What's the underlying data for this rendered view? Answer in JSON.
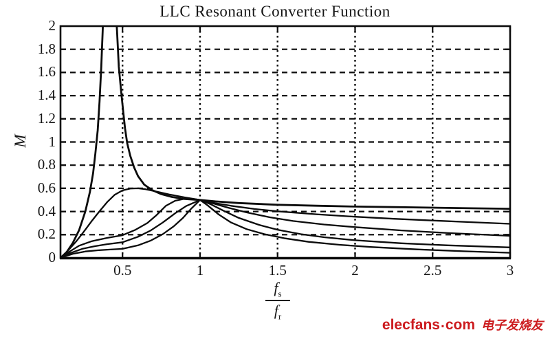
{
  "chart_data": {
    "type": "line",
    "title": "LLC Resonant Converter Function",
    "ylabel": "M",
    "xlabel": {
      "numerator": "f",
      "numerator_sub": "s",
      "denominator": "f",
      "denominator_sub": "r",
      "display": "fs/fr"
    },
    "xlim": [
      0.1,
      3
    ],
    "ylim": [
      0,
      2
    ],
    "xticks": {
      "values": [
        0.5,
        1,
        1.5,
        2,
        2.5,
        3
      ],
      "labels": [
        "0.5",
        "1",
        "1.5",
        "2",
        "2.5",
        "3"
      ]
    },
    "yticks": {
      "values": [
        0,
        0.2,
        0.4,
        0.6,
        0.8,
        1,
        1.2,
        1.4,
        1.6,
        1.8,
        2
      ],
      "labels": [
        "0",
        "0.2",
        "0.4",
        "0.6",
        "0.8",
        "1",
        "1.2",
        "1.4",
        "1.6",
        "1.8",
        "2"
      ]
    },
    "grid": {
      "horizontal_style": "dashed",
      "vertical_style": "dotted",
      "horizontal_values": [
        0.2,
        0.4,
        0.6,
        0.8,
        1,
        1.2,
        1.4,
        1.6,
        1.8
      ],
      "vertical_values": [
        0.5,
        1,
        1.5,
        2,
        2.5
      ]
    },
    "line_color": "#0b0b0b",
    "legend": "none",
    "series": [
      {
        "name": "gain-curve-resonant-peak-offscale",
        "points": [
          [
            0.1,
            0
          ],
          [
            0.14,
            0.05
          ],
          [
            0.18,
            0.13
          ],
          [
            0.22,
            0.24
          ],
          [
            0.26,
            0.4
          ],
          [
            0.29,
            0.57
          ],
          [
            0.31,
            0.73
          ],
          [
            0.325,
            0.9
          ],
          [
            0.34,
            1.1
          ],
          [
            0.352,
            1.35
          ],
          [
            0.363,
            1.65
          ],
          [
            0.372,
            1.95
          ],
          [
            0.38,
            2.25
          ],
          [
            0.4,
            2.6
          ],
          [
            0.43,
            2.6
          ],
          [
            0.452,
            2.25
          ],
          [
            0.465,
            1.95
          ],
          [
            0.476,
            1.65
          ],
          [
            0.49,
            1.45
          ],
          [
            0.503,
            1.28
          ],
          [
            0.516,
            1.12
          ],
          [
            0.53,
            0.99
          ],
          [
            0.55,
            0.88
          ],
          [
            0.575,
            0.78
          ],
          [
            0.6,
            0.705
          ],
          [
            0.64,
            0.632
          ],
          [
            0.69,
            0.585
          ],
          [
            0.75,
            0.55
          ],
          [
            0.82,
            0.525
          ],
          [
            0.9,
            0.508
          ],
          [
            1.0,
            0.5
          ],
          [
            1.1,
            0.487
          ],
          [
            1.25,
            0.473
          ],
          [
            1.5,
            0.458
          ],
          [
            1.75,
            0.45
          ],
          [
            2.0,
            0.443
          ],
          [
            2.25,
            0.438
          ],
          [
            2.5,
            0.433
          ],
          [
            2.75,
            0.428
          ],
          [
            3.0,
            0.424
          ]
        ]
      },
      {
        "name": "gain-curve-peak-0.6",
        "points": [
          [
            0.1,
            0
          ],
          [
            0.15,
            0.065
          ],
          [
            0.2,
            0.14
          ],
          [
            0.25,
            0.225
          ],
          [
            0.3,
            0.315
          ],
          [
            0.35,
            0.4
          ],
          [
            0.4,
            0.48
          ],
          [
            0.45,
            0.545
          ],
          [
            0.5,
            0.582
          ],
          [
            0.55,
            0.598
          ],
          [
            0.6,
            0.6
          ],
          [
            0.65,
            0.592
          ],
          [
            0.72,
            0.572
          ],
          [
            0.8,
            0.548
          ],
          [
            0.9,
            0.522
          ],
          [
            1.0,
            0.5
          ],
          [
            1.1,
            0.472
          ],
          [
            1.2,
            0.449
          ],
          [
            1.35,
            0.422
          ],
          [
            1.5,
            0.402
          ],
          [
            1.75,
            0.376
          ],
          [
            2.0,
            0.355
          ],
          [
            2.25,
            0.337
          ],
          [
            2.5,
            0.322
          ],
          [
            2.75,
            0.308
          ],
          [
            3.0,
            0.294
          ]
        ]
      },
      {
        "name": "gain-curve-broad-peak-1",
        "points": [
          [
            0.1,
            0
          ],
          [
            0.16,
            0.055
          ],
          [
            0.22,
            0.105
          ],
          [
            0.3,
            0.143
          ],
          [
            0.4,
            0.172
          ],
          [
            0.5,
            0.195
          ],
          [
            0.58,
            0.24
          ],
          [
            0.66,
            0.3
          ],
          [
            0.72,
            0.37
          ],
          [
            0.78,
            0.45
          ],
          [
            0.84,
            0.493
          ],
          [
            0.9,
            0.51
          ],
          [
            0.95,
            0.51
          ],
          [
            1.0,
            0.5
          ],
          [
            1.08,
            0.472
          ],
          [
            1.18,
            0.433
          ],
          [
            1.3,
            0.392
          ],
          [
            1.45,
            0.35
          ],
          [
            1.6,
            0.318
          ],
          [
            1.8,
            0.288
          ],
          [
            2.0,
            0.265
          ],
          [
            2.3,
            0.237
          ],
          [
            2.6,
            0.214
          ],
          [
            3.0,
            0.19
          ]
        ]
      },
      {
        "name": "gain-curve-sharp-peak-1",
        "points": [
          [
            0.1,
            0
          ],
          [
            0.16,
            0.04
          ],
          [
            0.24,
            0.078
          ],
          [
            0.32,
            0.1
          ],
          [
            0.4,
            0.118
          ],
          [
            0.5,
            0.135
          ],
          [
            0.6,
            0.182
          ],
          [
            0.68,
            0.235
          ],
          [
            0.76,
            0.305
          ],
          [
            0.84,
            0.385
          ],
          [
            0.91,
            0.447
          ],
          [
            1.0,
            0.5
          ],
          [
            1.07,
            0.462
          ],
          [
            1.15,
            0.408
          ],
          [
            1.25,
            0.345
          ],
          [
            1.38,
            0.285
          ],
          [
            1.5,
            0.243
          ],
          [
            1.65,
            0.205
          ],
          [
            1.8,
            0.178
          ],
          [
            2.0,
            0.152
          ],
          [
            2.3,
            0.126
          ],
          [
            2.6,
            0.108
          ],
          [
            3.0,
            0.09
          ]
        ]
      },
      {
        "name": "gain-curve-sharpest-peak-1",
        "points": [
          [
            0.1,
            0
          ],
          [
            0.18,
            0.035
          ],
          [
            0.26,
            0.055
          ],
          [
            0.34,
            0.065
          ],
          [
            0.42,
            0.072
          ],
          [
            0.5,
            0.078
          ],
          [
            0.6,
            0.108
          ],
          [
            0.68,
            0.148
          ],
          [
            0.76,
            0.205
          ],
          [
            0.83,
            0.272
          ],
          [
            0.89,
            0.345
          ],
          [
            0.94,
            0.42
          ],
          [
            1.0,
            0.5
          ],
          [
            1.05,
            0.452
          ],
          [
            1.12,
            0.375
          ],
          [
            1.2,
            0.305
          ],
          [
            1.3,
            0.248
          ],
          [
            1.42,
            0.203
          ],
          [
            1.55,
            0.168
          ],
          [
            1.7,
            0.138
          ],
          [
            1.9,
            0.113
          ],
          [
            2.1,
            0.094
          ],
          [
            2.4,
            0.073
          ],
          [
            2.7,
            0.057
          ],
          [
            3.0,
            0.044
          ]
        ]
      }
    ]
  },
  "watermark": {
    "brand": "elecfans",
    "separator": ".",
    "tld": "com",
    "cjk_text": "电子发烧友",
    "color": "#cc1b1e"
  }
}
